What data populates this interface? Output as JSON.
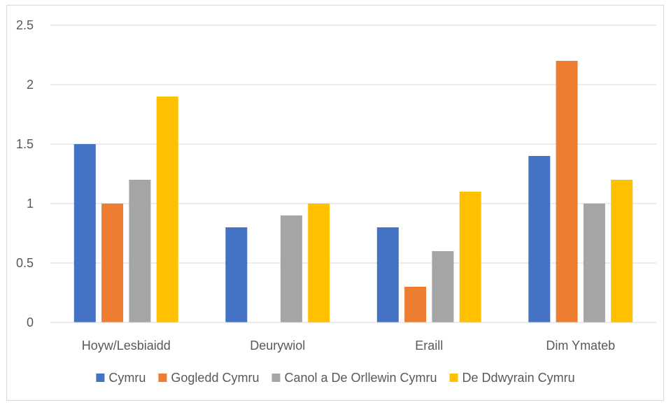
{
  "chart_data": {
    "type": "bar",
    "title": "",
    "xlabel": "",
    "ylabel": "",
    "categories": [
      "Hoyw/Lesbiaidd",
      "Deurywiol",
      "Eraill",
      "Dim Ymateb"
    ],
    "series": [
      {
        "name": "Cymru",
        "color": "#4472c4",
        "values": [
          1.5,
          0.8,
          0.8,
          1.4
        ]
      },
      {
        "name": "Gogledd Cymru",
        "color": "#ed7d31",
        "values": [
          1.0,
          0,
          0.3,
          2.2
        ]
      },
      {
        "name": "Canol a De Orllewin Cymru",
        "color": "#a5a5a5",
        "values": [
          1.2,
          0.9,
          0.6,
          1.0
        ]
      },
      {
        "name": "De Ddwyrain Cymru",
        "color": "#ffc000",
        "values": [
          1.9,
          1.0,
          1.1,
          1.2
        ]
      }
    ],
    "ylim": [
      0,
      2.5
    ],
    "yticks": [
      "0",
      "0.5",
      "1",
      "1.5",
      "2",
      "2.5"
    ],
    "grid": true,
    "legend_position": "bottom"
  }
}
